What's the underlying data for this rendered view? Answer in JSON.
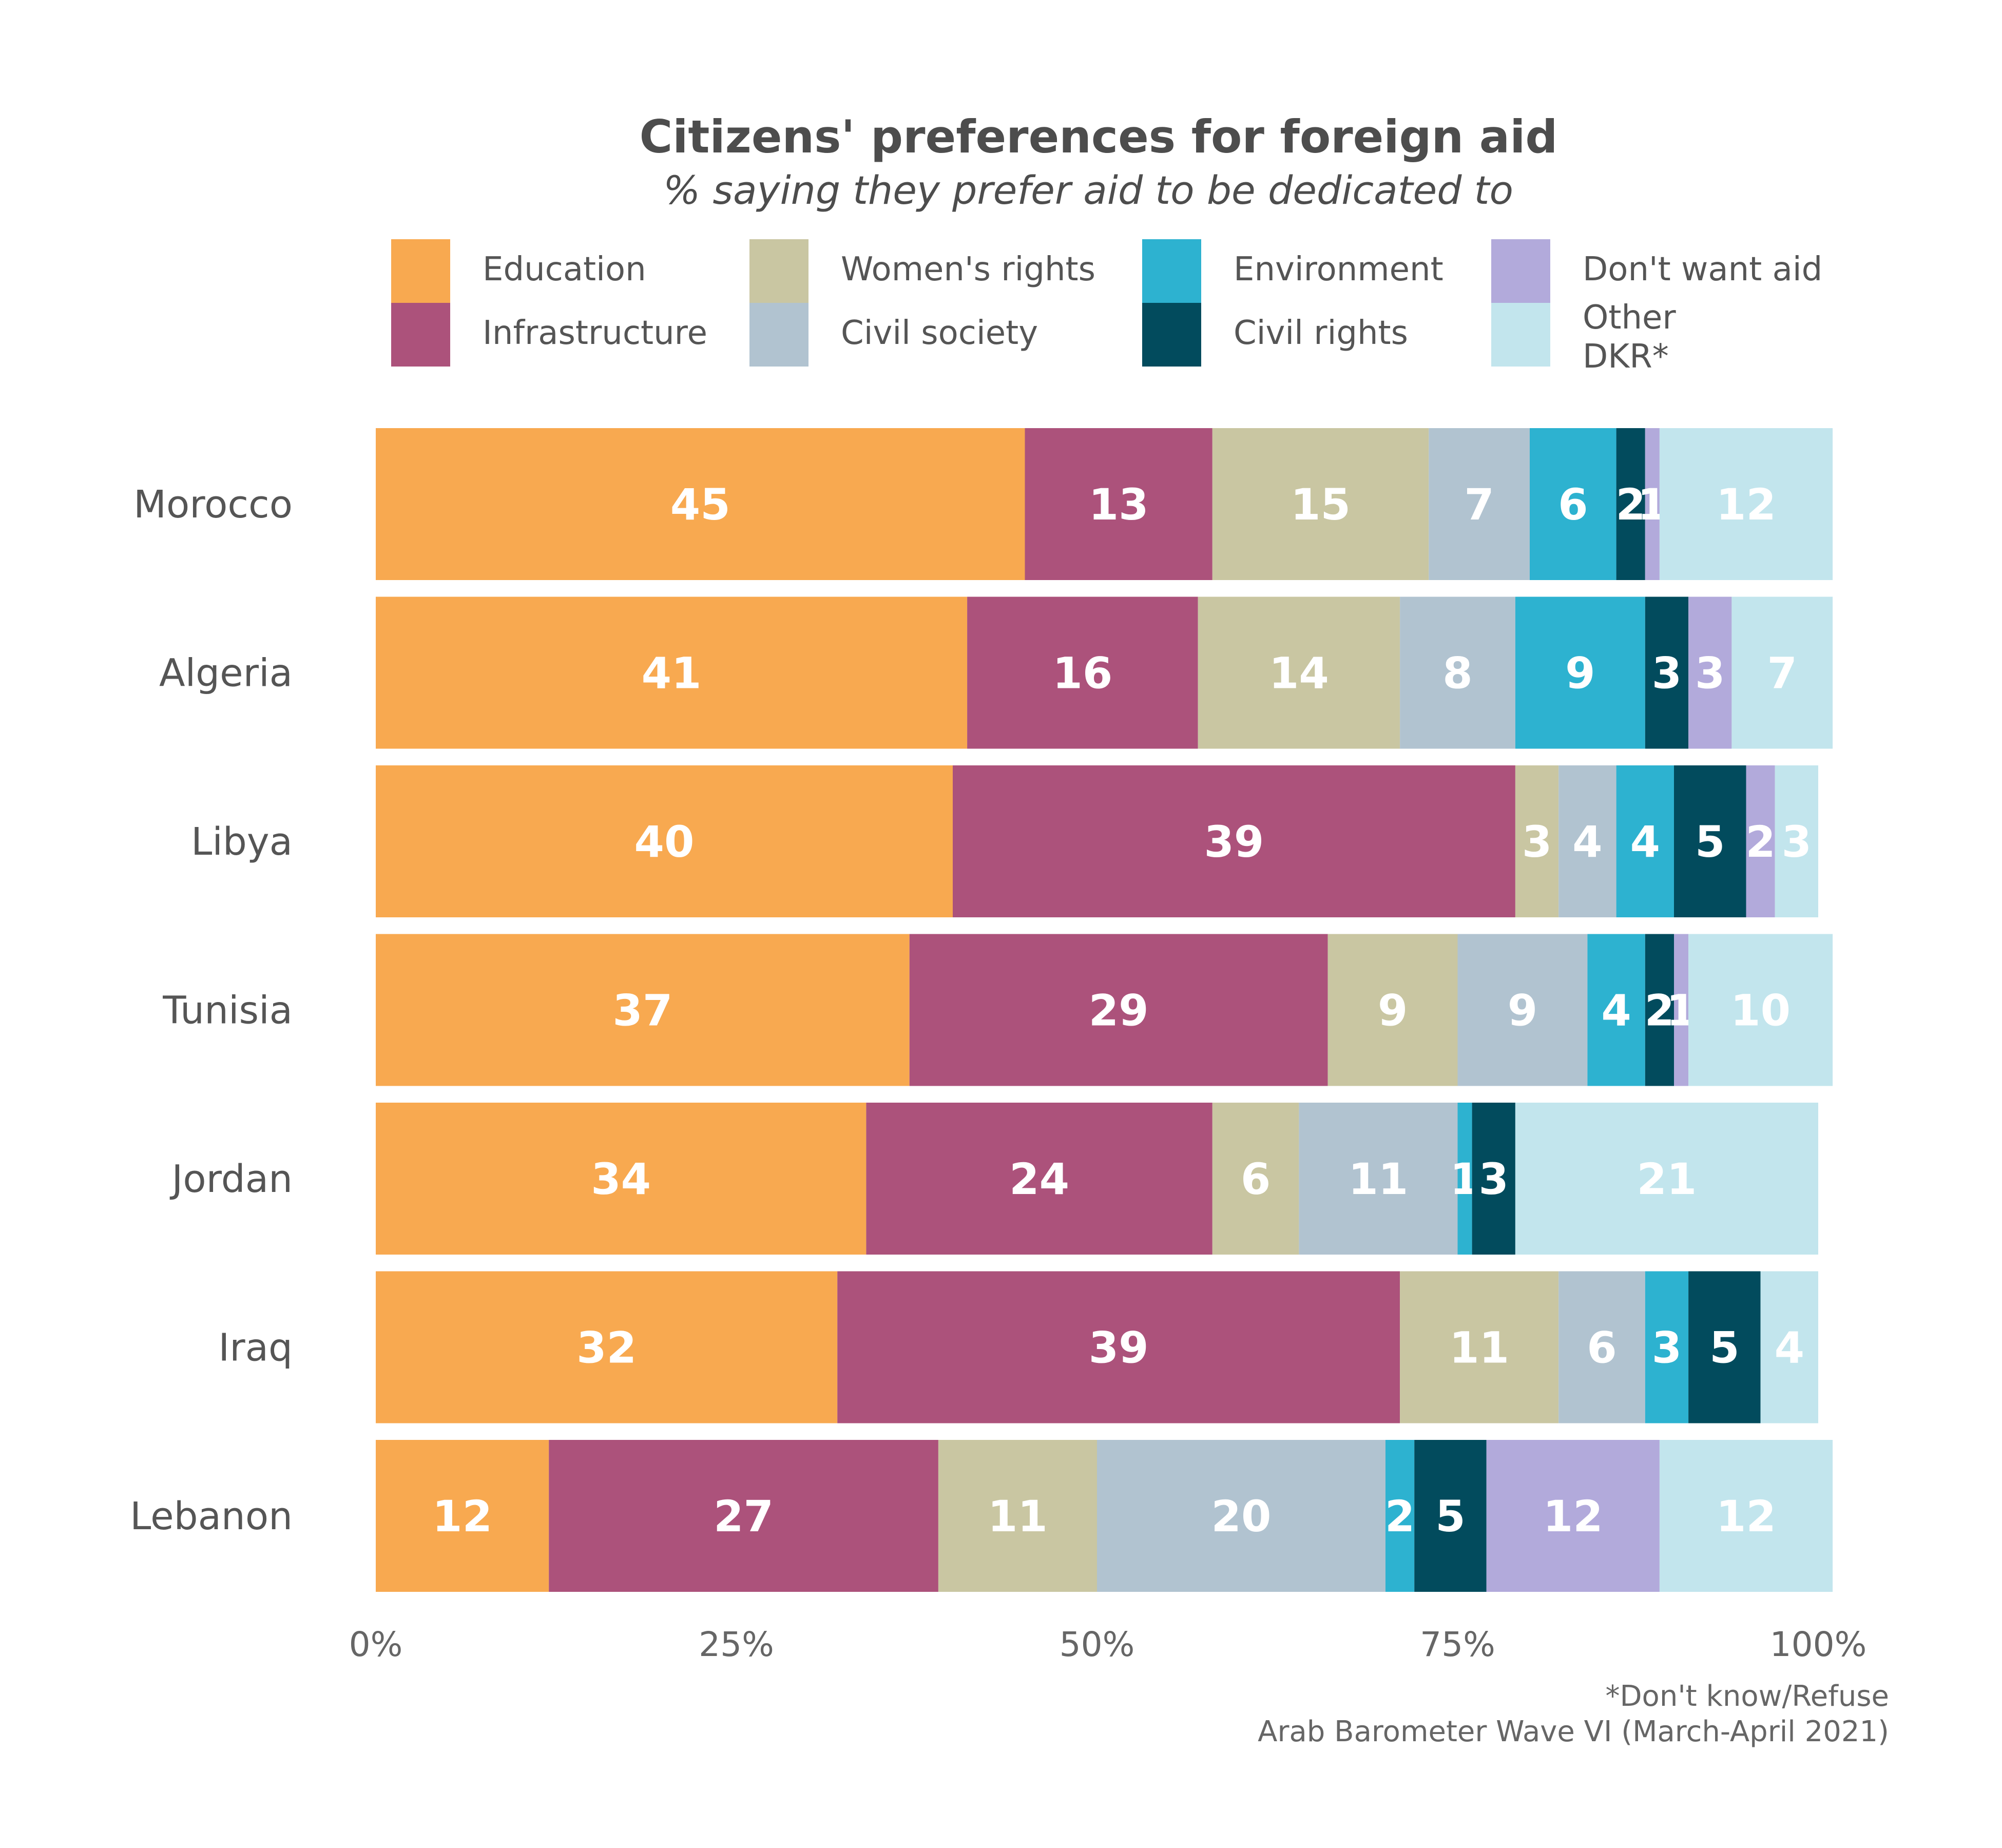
{
  "chart_data": {
    "type": "bar",
    "orientation": "horizontal",
    "stacked": true,
    "title": "Citizens' preferences for foreign aid",
    "subtitle": "% saying they prefer aid to be dedicated to",
    "categories": [
      "Morocco",
      "Algeria",
      "Libya",
      "Tunisia",
      "Jordan",
      "Iraq",
      "Lebanon"
    ],
    "xlim": [
      0,
      100
    ],
    "x_ticks": [
      "0%",
      "25%",
      "50%",
      "75%",
      "100%"
    ],
    "x_tick_values": [
      0,
      25,
      50,
      75,
      100
    ],
    "legend_position": "top",
    "series": [
      {
        "name": "Education",
        "color": "#f8a950",
        "values": [
          45,
          41,
          40,
          37,
          34,
          32,
          12
        ]
      },
      {
        "name": "Infrastructure",
        "color": "#ac527b",
        "values": [
          13,
          16,
          39,
          29,
          24,
          39,
          27
        ]
      },
      {
        "name": "Women's rights",
        "color": "#c9c6a2",
        "values": [
          15,
          14,
          3,
          9,
          6,
          11,
          11
        ]
      },
      {
        "name": "Civil society",
        "color": "#b1c3d0",
        "values": [
          7,
          8,
          4,
          9,
          11,
          6,
          20
        ]
      },
      {
        "name": "Environment",
        "color": "#2db2d0",
        "values": [
          6,
          9,
          4,
          4,
          1,
          3,
          2
        ]
      },
      {
        "name": "Civil rights",
        "color": "#024b5d",
        "values": [
          2,
          3,
          5,
          2,
          3,
          5,
          5
        ]
      },
      {
        "name": "Don't want aid",
        "color": "#b2aadb",
        "values": [
          1,
          3,
          2,
          1,
          0,
          0,
          12
        ]
      },
      {
        "name": "Other\nDKR*",
        "color": "#c2e5ed",
        "values": [
          12,
          7,
          3,
          10,
          21,
          4,
          12
        ]
      }
    ],
    "footnotes": [
      "*Don't know/Refuse",
      "Arab Barometer Wave VI (March-April 2021)"
    ]
  }
}
